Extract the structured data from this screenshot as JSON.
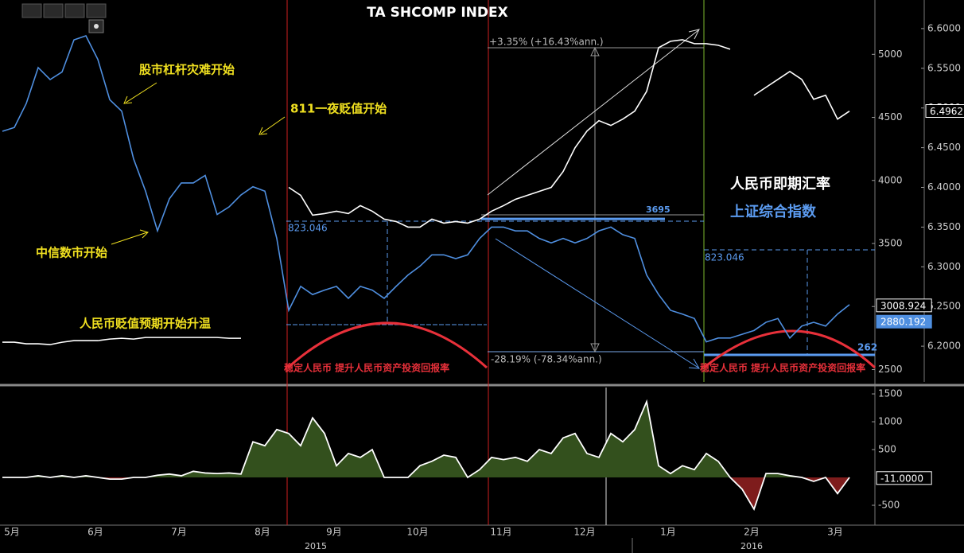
{
  "chart_data": [
    {
      "type": "line",
      "title": "TA SHCOMP INDEX",
      "categories": [
        null,
        "5月",
        null,
        null,
        null,
        null,
        null,
        null,
        "6月",
        null,
        null,
        null,
        null,
        null,
        null,
        "7月",
        null,
        null,
        null,
        null,
        null,
        null,
        "8月",
        null,
        null,
        null,
        null,
        null,
        "9月",
        null,
        null,
        null,
        null,
        null,
        null,
        "10月",
        null,
        null,
        null,
        null,
        null,
        null,
        "11月",
        null,
        null,
        null,
        null,
        null,
        null,
        "12月",
        null,
        null,
        null,
        null,
        null,
        null,
        "1月",
        null,
        null,
        null,
        null,
        null,
        null,
        "2月",
        null,
        null,
        null,
        null,
        null,
        null,
        "3月",
        null
      ],
      "years": [
        "2015",
        "2016"
      ],
      "series": [
        {
          "name": "上证综合指数",
          "color": "#4f8fe0",
          "values": [
            4390,
            4420,
            4610,
            4895,
            4800,
            4860,
            5115,
            5147,
            4960,
            4640,
            4550,
            4170,
            3915,
            3600,
            3855,
            3980,
            3980,
            4040,
            3730,
            3790,
            3885,
            3950,
            3915,
            3540,
            2970,
            3160,
            3095,
            3130,
            3160,
            3065,
            3160,
            3130,
            3065,
            3160,
            3250,
            3320,
            3410,
            3410,
            3380,
            3410,
            3540,
            3630,
            3630,
            3600,
            3600,
            3540,
            3505,
            3540,
            3505,
            3540,
            3600,
            3630,
            3570,
            3540,
            3250,
            3095,
            2970,
            2940,
            2905,
            2720,
            2750,
            2750,
            2780,
            2810,
            2875,
            2905,
            2750,
            2845,
            2875,
            2845,
            2940,
            3015
          ]
        },
        {
          "name": "人民币即期汇率",
          "color": "#ffffff",
          "axis": "y2",
          "values": [
            6.205,
            6.205,
            6.203,
            6.203,
            6.202,
            6.205,
            6.207,
            6.207,
            6.207,
            6.209,
            6.21,
            6.209,
            6.211,
            6.211,
            6.211,
            6.211,
            6.211,
            6.211,
            6.211,
            6.21,
            6.21,
            null,
            null,
            null,
            6.4,
            6.39,
            6.365,
            6.367,
            6.37,
            6.367,
            6.377,
            6.37,
            6.36,
            6.357,
            6.35,
            6.35,
            6.36,
            6.355,
            6.357,
            6.355,
            6.36,
            6.37,
            6.377,
            6.385,
            6.39,
            6.395,
            6.4,
            6.42,
            6.45,
            6.471,
            6.484,
            6.478,
            6.486,
            6.496,
            6.521,
            6.576,
            6.584,
            6.586,
            6.581,
            6.581,
            6.579,
            6.574,
            null,
            6.516,
            6.526,
            6.536,
            6.546,
            6.536,
            6.511,
            6.516,
            6.486,
            6.496
          ]
        }
      ],
      "ylim": [
        2402,
        5431
      ],
      "yticks": [
        2500,
        3000,
        3500,
        4000,
        4500,
        5000
      ],
      "y2lim": [
        6.155,
        6.636
      ],
      "y2ticks": [
        {
          "value": 6.2,
          "label": "6.2000"
        },
        {
          "value": 6.25,
          "label": "6.2500"
        },
        {
          "value": 6.3,
          "label": "6.3000"
        },
        {
          "value": 6.35,
          "label": "6.3500"
        },
        {
          "value": 6.4,
          "label": "6.4000"
        },
        {
          "value": 6.45,
          "label": "6.4500"
        },
        {
          "value": 6.5,
          "label": "6.5000"
        },
        {
          "value": 6.55,
          "label": "6.5500"
        },
        {
          "value": 6.6,
          "label": "6.6000"
        }
      ],
      "last_values": [
        {
          "value": 6.4962,
          "label": "6.4962",
          "axis": "y2",
          "color": "#ffffff"
        },
        {
          "value": 3008.924,
          "label": "3008.924",
          "color": "#ffffff"
        },
        {
          "value": 2880.192,
          "label": "2880.192",
          "color": "#4f8fe0"
        }
      ],
      "level": {
        "value": 3695,
        "label": "3695",
        "color": "#5b9bf0"
      },
      "annotations": [
        "股市杠杆灾难开始",
        "811一夜贬值开始",
        "中信数市开始",
        "人民币贬值预期开始升温",
        "稳定人民币 提升人民币资产投资回报率",
        "稳定人民币 提升人民币资产投资回报率",
        "+3.35% (+16.43%ann.)",
        "-28.19% (-78.34%ann.)",
        "823.046",
        "823.046",
        "262"
      ]
    },
    {
      "type": "area",
      "series": [
        {
          "color": "#ffffff",
          "values": [
            0,
            0,
            0,
            30,
            0,
            30,
            0,
            30,
            0,
            -30,
            -30,
            0,
            0,
            40,
            60,
            30,
            110,
            80,
            70,
            80,
            60,
            640,
            570,
            860,
            790,
            570,
            1070,
            790,
            210,
            430,
            360,
            500,
            0,
            0,
            0,
            210,
            290,
            400,
            360,
            0,
            140,
            360,
            320,
            360,
            290,
            500,
            430,
            710,
            790,
            430,
            360,
            790,
            640,
            860,
            1360,
            210,
            70,
            210,
            140,
            430,
            290,
            0,
            -210,
            -570,
            70,
            70,
            30,
            0,
            -70,
            0,
            -290,
            0
          ]
        }
      ],
      "fill_above": "#33501d",
      "fill_below": "#7e1c1c",
      "ylim": [
        -857,
        1615
      ],
      "yticks": [
        -500,
        500,
        1000,
        1500
      ],
      "last_values": [
        {
          "value": -11,
          "label": "-11.0000",
          "color": "#ffffff"
        }
      ]
    }
  ]
}
